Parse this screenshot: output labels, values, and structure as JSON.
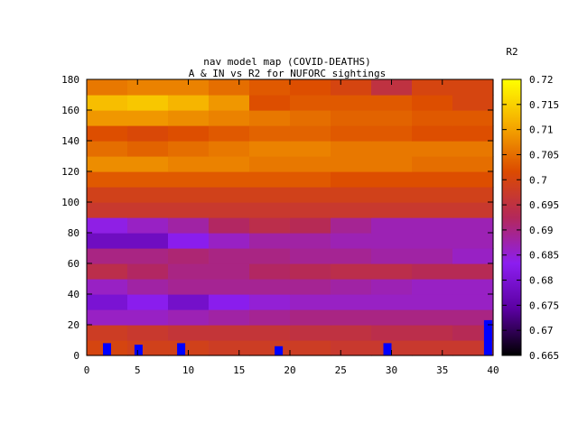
{
  "chart_data": {
    "type": "heatmap",
    "title_line1": "nav model map (COVID-DEATHS)",
    "title_line2": "A & IN vs R2 for NUFORC sightings",
    "colorbar_label": "R2",
    "x_ticks": [
      "0",
      "5",
      "10",
      "15",
      "20",
      "25",
      "30",
      "35",
      "40"
    ],
    "y_ticks": [
      "0",
      "20",
      "40",
      "60",
      "80",
      "100",
      "120",
      "140",
      "160",
      "180"
    ],
    "cb_ticks": [
      "0.665",
      "0.67",
      "0.675",
      "0.68",
      "0.685",
      "0.69",
      "0.695",
      "0.7",
      "0.705",
      "0.71",
      "0.715",
      "0.72"
    ],
    "xlim": [
      0,
      40
    ],
    "ylim": [
      0,
      180
    ],
    "zlim": [
      0.665,
      0.72
    ],
    "y_rows": [
      5,
      15,
      25,
      35,
      45,
      55,
      65,
      75,
      85,
      95,
      105,
      115,
      125,
      135,
      145,
      155,
      165,
      175
    ],
    "x_cols": [
      2,
      6,
      10,
      14,
      18,
      22,
      26,
      30,
      34,
      38
    ],
    "z": [
      [
        0.7,
        0.699,
        0.699,
        0.698,
        0.698,
        0.698,
        0.697,
        0.697,
        0.697,
        0.697
      ],
      [
        0.698,
        0.697,
        0.696,
        0.696,
        0.696,
        0.695,
        0.695,
        0.694,
        0.694,
        0.693
      ],
      [
        0.686,
        0.686,
        0.687,
        0.688,
        0.689,
        0.69,
        0.69,
        0.69,
        0.69,
        0.69
      ],
      [
        0.68,
        0.683,
        0.679,
        0.683,
        0.685,
        0.686,
        0.686,
        0.686,
        0.686,
        0.686
      ],
      [
        0.686,
        0.688,
        0.689,
        0.689,
        0.689,
        0.689,
        0.688,
        0.687,
        0.686,
        0.686
      ],
      [
        0.694,
        0.692,
        0.69,
        0.69,
        0.692,
        0.693,
        0.694,
        0.694,
        0.693,
        0.693
      ],
      [
        0.69,
        0.69,
        0.691,
        0.69,
        0.69,
        0.689,
        0.689,
        0.688,
        0.688,
        0.686
      ],
      [
        0.678,
        0.678,
        0.683,
        0.686,
        0.688,
        0.688,
        0.687,
        0.687,
        0.687,
        0.687
      ],
      [
        0.684,
        0.686,
        0.688,
        0.692,
        0.694,
        0.693,
        0.689,
        0.687,
        0.687,
        0.687
      ],
      [
        0.697,
        0.697,
        0.697,
        0.697,
        0.697,
        0.697,
        0.697,
        0.697,
        0.697,
        0.697
      ],
      [
        0.699,
        0.699,
        0.699,
        0.699,
        0.699,
        0.699,
        0.699,
        0.699,
        0.699,
        0.699
      ],
      [
        0.703,
        0.703,
        0.703,
        0.703,
        0.703,
        0.703,
        0.702,
        0.702,
        0.702,
        0.702
      ],
      [
        0.708,
        0.708,
        0.707,
        0.707,
        0.706,
        0.706,
        0.706,
        0.706,
        0.705,
        0.705
      ],
      [
        0.705,
        0.704,
        0.705,
        0.706,
        0.707,
        0.707,
        0.706,
        0.706,
        0.706,
        0.706
      ],
      [
        0.702,
        0.701,
        0.702,
        0.703,
        0.704,
        0.704,
        0.703,
        0.703,
        0.702,
        0.702
      ],
      [
        0.709,
        0.709,
        0.708,
        0.707,
        0.706,
        0.705,
        0.704,
        0.704,
        0.703,
        0.703
      ],
      [
        0.713,
        0.714,
        0.712,
        0.709,
        0.702,
        0.703,
        0.703,
        0.703,
        0.702,
        0.7
      ],
      [
        0.706,
        0.707,
        0.707,
        0.705,
        0.703,
        0.702,
        0.7,
        0.695,
        0.7,
        0.7
      ]
    ],
    "markers": [
      {
        "x": 2.0,
        "y0": 0,
        "y1": 8
      },
      {
        "x": 5.1,
        "y0": 0,
        "y1": 7
      },
      {
        "x": 9.3,
        "y0": 0,
        "y1": 8
      },
      {
        "x": 18.9,
        "y0": 0,
        "y1": 6
      },
      {
        "x": 29.6,
        "y0": 0,
        "y1": 8
      },
      {
        "x": 39.5,
        "y0": 0,
        "y1": 23
      }
    ],
    "marker_color": "#0000ff"
  },
  "palette": {
    "stops": [
      "#000000",
      "#5a00a0",
      "#8c1ef0",
      "#b4285a",
      "#dc4b00",
      "#f5aa00",
      "#ffff00"
    ]
  }
}
